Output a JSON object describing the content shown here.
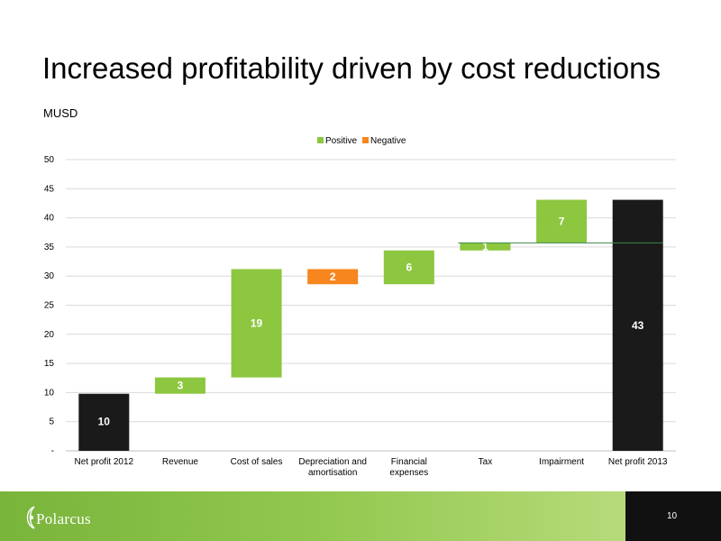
{
  "slide": {
    "title": "Increased profitability driven by cost reductions",
    "unit": "MUSD",
    "page_number": "10",
    "logo_text": "Polarcus"
  },
  "colors": {
    "positive": "#8DC63F",
    "negative": "#F7861E",
    "total": "#1A1A1A",
    "reference_line": "#3A8A4A",
    "footer_green": "#8DC63F",
    "footer_dark": "#111111"
  },
  "chart_data": {
    "type": "bar",
    "variant": "waterfall",
    "categories": [
      "Net profit 2012",
      "Revenue",
      "Cost of sales",
      "Depreciation and amortisation",
      "Financial expenses",
      "Tax",
      "Impairment",
      "Net profit 2013"
    ],
    "category_lines": [
      [
        "Net profit 2012"
      ],
      [
        "Revenue"
      ],
      [
        "Cost of sales"
      ],
      [
        "Depreciation and",
        "amortisation"
      ],
      [
        "Financial",
        "expenses"
      ],
      [
        "Tax"
      ],
      [
        "Impairment"
      ],
      [
        "Net profit 2013"
      ]
    ],
    "bars": [
      {
        "kind": "total",
        "start": 0,
        "end": 9.8,
        "label": "10"
      },
      {
        "kind": "positive",
        "start": 9.8,
        "end": 12.6,
        "label": "3"
      },
      {
        "kind": "positive",
        "start": 12.6,
        "end": 31.2,
        "label": "19"
      },
      {
        "kind": "negative",
        "start": 31.2,
        "end": 28.6,
        "label": "2"
      },
      {
        "kind": "positive",
        "start": 28.6,
        "end": 34.4,
        "label": "6"
      },
      {
        "kind": "positive",
        "start": 34.4,
        "end": 35.7,
        "label": "1"
      },
      {
        "kind": "positive",
        "start": 35.7,
        "end": 43.1,
        "label": "7"
      },
      {
        "kind": "total",
        "start": 0,
        "end": 43.1,
        "label": "43"
      }
    ],
    "reference_line": 35.7,
    "legend": [
      {
        "name": "Positive",
        "color": "#8DC63F"
      },
      {
        "name": "Negative",
        "color": "#F7861E"
      }
    ],
    "legend_position": "top-center",
    "yticks": [
      "-",
      "5",
      "10",
      "15",
      "20",
      "25",
      "30",
      "35",
      "40",
      "45",
      "50"
    ],
    "ylim": [
      0,
      50
    ],
    "grid": true
  }
}
